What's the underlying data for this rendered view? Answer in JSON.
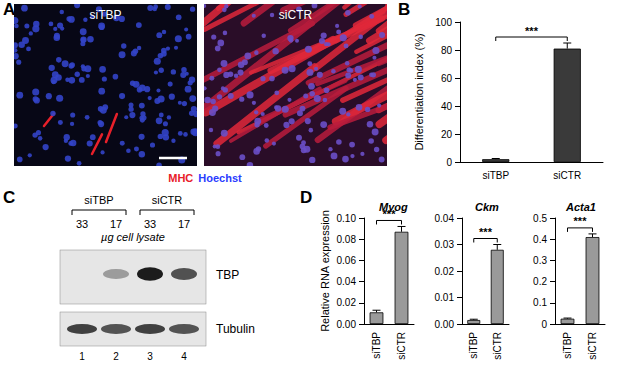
{
  "figure": {
    "panel_letters": [
      "A",
      "B",
      "C",
      "D"
    ]
  },
  "panel_a": {
    "images": [
      {
        "label": "siTBP"
      },
      {
        "label": "siCTR"
      }
    ],
    "stain_labels": [
      {
        "text": "MHC",
        "color": "#e8202a"
      },
      {
        "text": "Hoechst",
        "color": "#2a3cff"
      }
    ]
  },
  "panel_c": {
    "groups": [
      {
        "label": "siTBP",
        "lanes": [
          {
            "amount": 33,
            "number": 1
          },
          {
            "amount": 17,
            "number": 2
          }
        ]
      },
      {
        "label": "siCTR",
        "lanes": [
          {
            "amount": 33,
            "number": 3
          },
          {
            "amount": 17,
            "number": 4
          }
        ]
      }
    ],
    "amount_label": "µg cell lysate",
    "blots": [
      "TBP",
      "Tubulin"
    ]
  },
  "chart_data": [
    {
      "type": "bar",
      "y_label": "Differentiation index (%)",
      "categories": [
        "siTBP",
        "siCTR"
      ],
      "values": [
        2,
        81
      ],
      "errors": [
        0.5,
        4
      ],
      "color": "#3a3a3a",
      "ylim": [
        0,
        100
      ],
      "yticks": [
        0,
        20,
        40,
        60,
        80,
        100
      ],
      "grid": false,
      "annotations": [
        {
          "text": "***"
        }
      ]
    },
    {
      "type": "bar",
      "title": "Myog",
      "y_label": "Relative RNA expression",
      "categories": [
        "siTBP",
        "siCTR"
      ],
      "values": [
        0.011,
        0.087
      ],
      "errors": [
        0.002,
        0.005
      ],
      "color": "#9a9a9a",
      "ylim": [
        0,
        0.1
      ],
      "yticks": [
        {
          "value": 0,
          "label": "0.00"
        },
        {
          "value": 0.02,
          "label": "0.02"
        },
        {
          "value": 0.04,
          "label": "0.04"
        },
        {
          "value": 0.06,
          "label": "0.06"
        },
        {
          "value": 0.08,
          "label": "0.08"
        },
        {
          "value": 0.1,
          "label": "0.10"
        }
      ],
      "grid": false,
      "annotations": [
        {
          "text": "***"
        }
      ]
    },
    {
      "type": "bar",
      "title": "Ckm",
      "categories": [
        "siTBP",
        "siCTR"
      ],
      "values": [
        0.0015,
        0.028
      ],
      "errors": [
        0.0003,
        0.002
      ],
      "color": "#9a9a9a",
      "ylim": [
        0,
        0.04
      ],
      "yticks": [
        {
          "value": 0,
          "label": "0.00"
        },
        {
          "value": 0.01,
          "label": "0.01"
        },
        {
          "value": 0.02,
          "label": "0.02"
        },
        {
          "value": 0.03,
          "label": "0.03"
        },
        {
          "value": 0.04,
          "label": "0.04"
        }
      ],
      "grid": false,
      "annotations": [
        {
          "text": "***"
        }
      ]
    },
    {
      "type": "bar",
      "title": "Acta1",
      "categories": [
        "siTBP",
        "siCTR"
      ],
      "values": [
        0.025,
        0.41
      ],
      "errors": [
        0.003,
        0.015
      ],
      "color": "#9a9a9a",
      "ylim": [
        0,
        0.5
      ],
      "yticks": [
        0,
        0.1,
        0.2,
        0.3,
        0.4,
        0.5
      ],
      "grid": false,
      "annotations": [
        {
          "text": "***"
        }
      ]
    }
  ]
}
